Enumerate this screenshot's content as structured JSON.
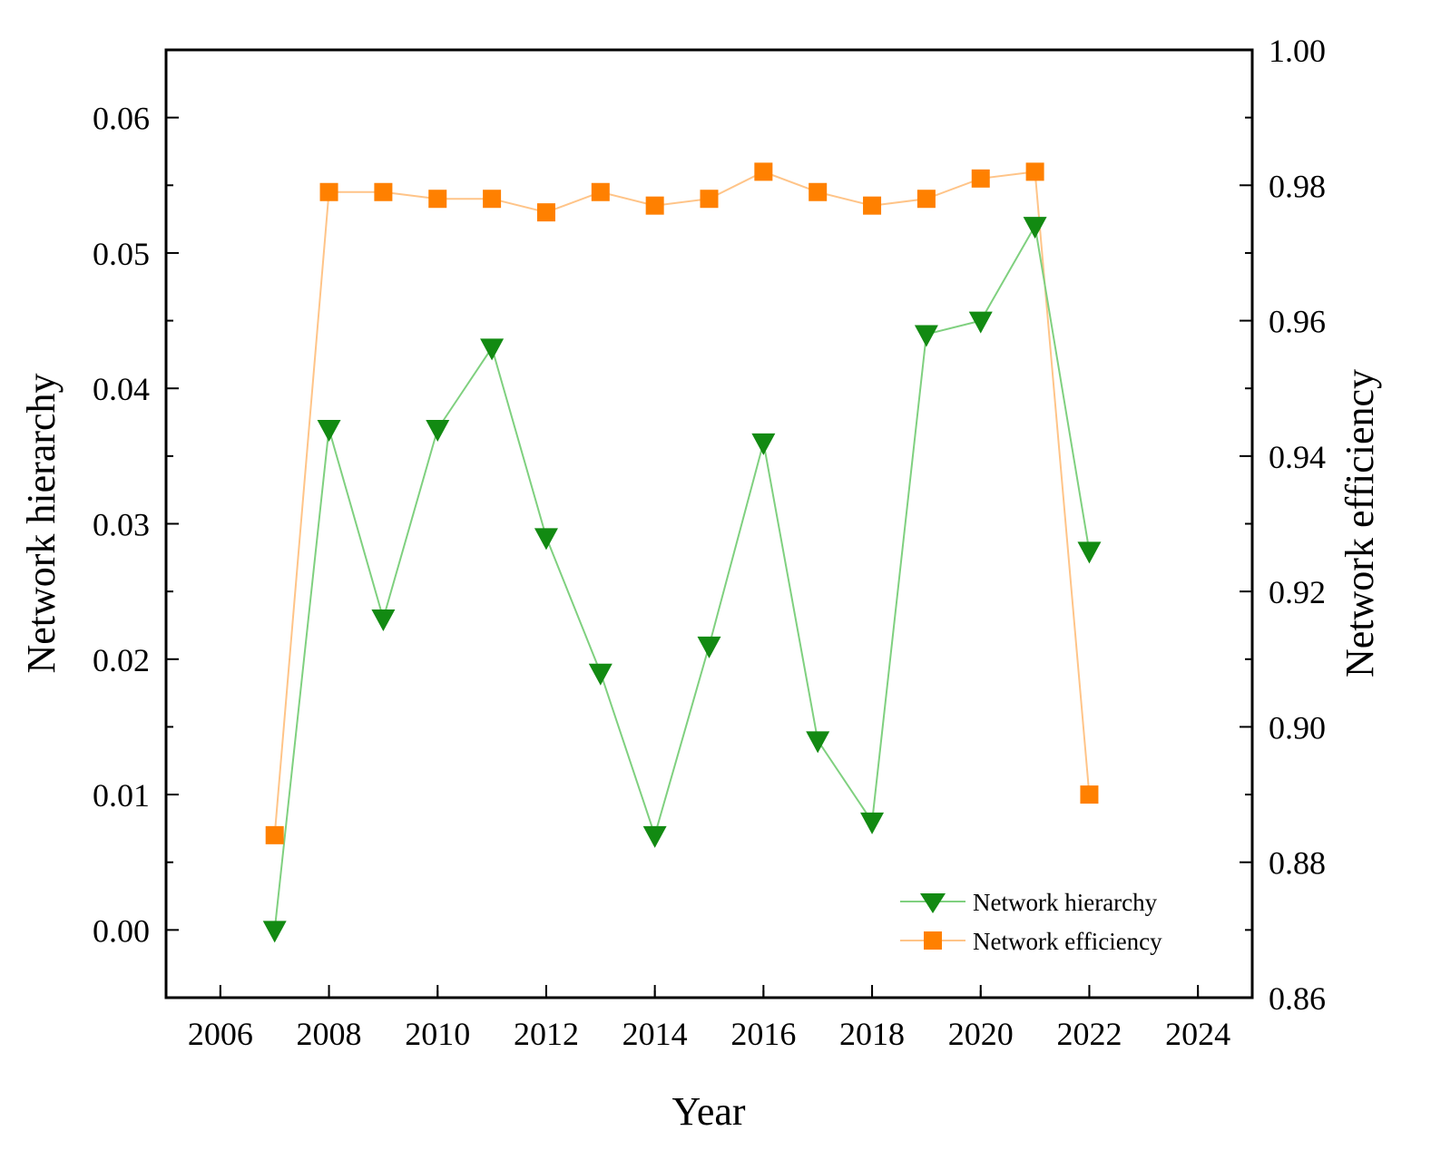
{
  "chart_data": {
    "type": "line",
    "title": "",
    "xlabel": "Year",
    "ylabel_left": "Network hierarchy",
    "ylabel_right": "Network efficiency",
    "xlim": [
      2005,
      2025
    ],
    "ylim_left": [
      -0.005,
      0.065
    ],
    "ylim_right": [
      0.86,
      1.0
    ],
    "x_ticks": [
      2006,
      2008,
      2010,
      2012,
      2014,
      2016,
      2018,
      2020,
      2022,
      2024
    ],
    "y_left_ticks": [
      "0.00",
      "0.01",
      "0.02",
      "0.03",
      "0.04",
      "0.05",
      "0.06"
    ],
    "y_right_ticks": [
      "0.86",
      "0.88",
      "0.90",
      "0.92",
      "0.94",
      "0.96",
      "0.98",
      "1.00"
    ],
    "x": [
      2007,
      2008,
      2009,
      2010,
      2011,
      2012,
      2013,
      2014,
      2015,
      2016,
      2017,
      2018,
      2019,
      2020,
      2021,
      2022
    ],
    "series": [
      {
        "name": "Network hierarchy",
        "axis": "left",
        "marker": "triangle-down",
        "color": "#128a12",
        "line_color": "#7fd07f",
        "values": [
          0.0,
          0.037,
          0.023,
          0.037,
          0.043,
          0.029,
          0.019,
          0.007,
          0.021,
          0.036,
          0.014,
          0.008,
          0.044,
          0.045,
          0.052,
          0.028
        ]
      },
      {
        "name": "Network efficiency",
        "axis": "right",
        "marker": "square",
        "color": "#ff8000",
        "line_color": "#ffc488",
        "values": [
          0.884,
          0.979,
          0.979,
          0.978,
          0.978,
          0.976,
          0.979,
          0.977,
          0.978,
          0.982,
          0.979,
          0.977,
          0.978,
          0.981,
          0.982,
          0.89
        ]
      }
    ],
    "legend_position": "bottom-right",
    "grid": false
  }
}
